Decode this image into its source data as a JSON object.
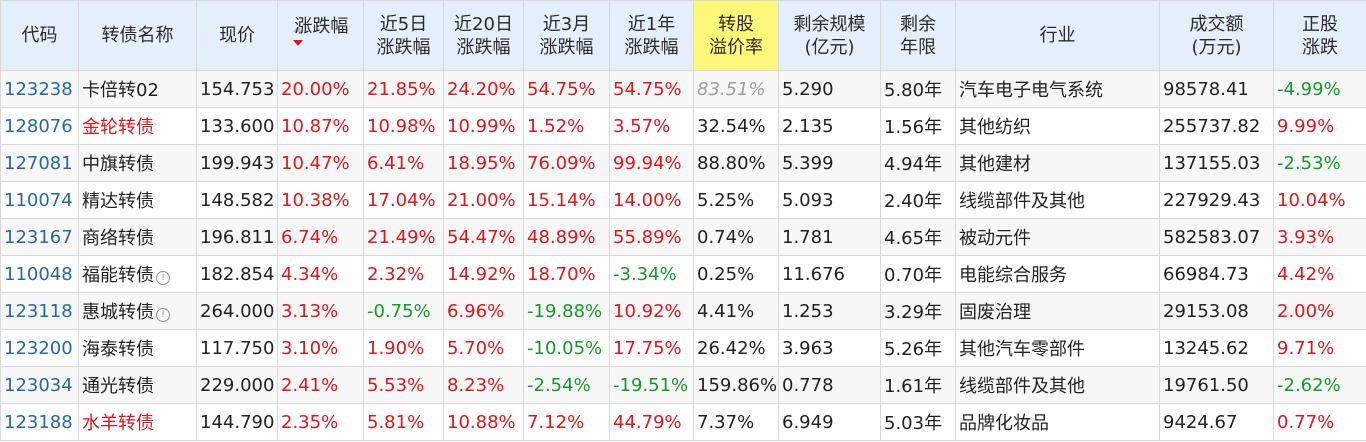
{
  "headers": [
    {
      "line1": "代码",
      "line2": ""
    },
    {
      "line1": "转债名称",
      "line2": ""
    },
    {
      "line1": "现价",
      "line2": ""
    },
    {
      "line1": "涨跌幅",
      "line2": ""
    },
    {
      "line1": "近5日",
      "line2": "涨跌幅"
    },
    {
      "line1": "近20日",
      "line2": "涨跌幅"
    },
    {
      "line1": "近3月",
      "line2": "涨跌幅"
    },
    {
      "line1": "近1年",
      "line2": "涨跌幅"
    },
    {
      "line1": "转股",
      "line2": "溢价率"
    },
    {
      "line1": "剩余规模",
      "line2": "(亿元)"
    },
    {
      "line1": "剩余",
      "line2": "年限"
    },
    {
      "line1": "行业",
      "line2": ""
    },
    {
      "line1": "成交额",
      "line2": "(万元)"
    },
    {
      "line1": "正股",
      "line2": "涨跌"
    }
  ],
  "colors": {
    "up": "#e0161a",
    "down": "#159a2a",
    "header_bg": "#e5eefb",
    "highlight_bg": "#fff77a",
    "code": "#2468a8"
  },
  "rows": [
    {
      "code": "123238",
      "name": "卡倍转02",
      "price": "154.753",
      "chg": "20.00%",
      "chg5d": "21.85%",
      "chg20d": "24.20%",
      "chg3m": "54.75%",
      "chg1y": "54.75%",
      "premium": "83.51%",
      "scale": "5.290",
      "years": "5.80年",
      "industry": "汽车电子电气系统",
      "turnover": "98578.41",
      "stock_chg": "-4.99%"
    },
    {
      "code": "128076",
      "name": "金轮转债",
      "price": "133.600",
      "chg": "10.87%",
      "chg5d": "10.98%",
      "chg20d": "10.99%",
      "chg3m": "1.52%",
      "chg1y": "3.57%",
      "premium": "32.54%",
      "scale": "2.135",
      "years": "1.56年",
      "industry": "其他纺织",
      "turnover": "255737.82",
      "stock_chg": "9.99%"
    },
    {
      "code": "127081",
      "name": "中旗转债",
      "price": "199.943",
      "chg": "10.47%",
      "chg5d": "6.41%",
      "chg20d": "18.95%",
      "chg3m": "76.09%",
      "chg1y": "99.94%",
      "premium": "88.80%",
      "scale": "5.399",
      "years": "4.94年",
      "industry": "其他建材",
      "turnover": "137155.03",
      "stock_chg": "-2.53%"
    },
    {
      "code": "110074",
      "name": "精达转债",
      "price": "148.582",
      "chg": "10.38%",
      "chg5d": "17.04%",
      "chg20d": "21.00%",
      "chg3m": "15.14%",
      "chg1y": "14.00%",
      "premium": "5.25%",
      "scale": "5.093",
      "years": "2.40年",
      "industry": "线缆部件及其他",
      "turnover": "227929.43",
      "stock_chg": "10.04%"
    },
    {
      "code": "123167",
      "name": "商络转债",
      "price": "196.811",
      "chg": "6.74%",
      "chg5d": "21.49%",
      "chg20d": "54.47%",
      "chg3m": "48.89%",
      "chg1y": "55.89%",
      "premium": "0.74%",
      "scale": "1.781",
      "years": "4.65年",
      "industry": "被动元件",
      "turnover": "582583.07",
      "stock_chg": "3.93%"
    },
    {
      "code": "110048",
      "name": "福能转债",
      "price": "182.854",
      "chg": "4.34%",
      "chg5d": "2.32%",
      "chg20d": "14.92%",
      "chg3m": "18.70%",
      "chg1y": "-3.34%",
      "premium": "0.25%",
      "scale": "11.676",
      "years": "0.70年",
      "industry": "电能综合服务",
      "turnover": "66984.73",
      "stock_chg": "4.42%"
    },
    {
      "code": "123118",
      "name": "惠城转债",
      "price": "264.000",
      "chg": "3.13%",
      "chg5d": "-0.75%",
      "chg20d": "6.96%",
      "chg3m": "-19.88%",
      "chg1y": "10.92%",
      "premium": "4.41%",
      "scale": "1.253",
      "years": "3.29年",
      "industry": "固废治理",
      "turnover": "29153.08",
      "stock_chg": "2.00%"
    },
    {
      "code": "123200",
      "name": "海泰转债",
      "price": "117.750",
      "chg": "3.10%",
      "chg5d": "1.90%",
      "chg20d": "5.70%",
      "chg3m": "-10.05%",
      "chg1y": "17.75%",
      "premium": "26.42%",
      "scale": "3.963",
      "years": "5.26年",
      "industry": "其他汽车零部件",
      "turnover": "13245.62",
      "stock_chg": "9.71%"
    },
    {
      "code": "123034",
      "name": "通光转债",
      "price": "229.000",
      "chg": "2.41%",
      "chg5d": "5.53%",
      "chg20d": "8.23%",
      "chg3m": "-2.54%",
      "chg1y": "-19.51%",
      "premium": "159.86%",
      "scale": "0.778",
      "years": "1.61年",
      "industry": "线缆部件及其他",
      "turnover": "19761.50",
      "stock_chg": "-2.62%"
    },
    {
      "code": "123188",
      "name": "水羊转债",
      "price": "144.790",
      "chg": "2.35%",
      "chg5d": "5.81%",
      "chg20d": "10.88%",
      "chg3m": "7.12%",
      "chg1y": "44.79%",
      "premium": "7.37%",
      "scale": "6.949",
      "years": "5.03年",
      "industry": "品牌化妆品",
      "turnover": "9424.67",
      "stock_chg": "0.77%"
    }
  ]
}
